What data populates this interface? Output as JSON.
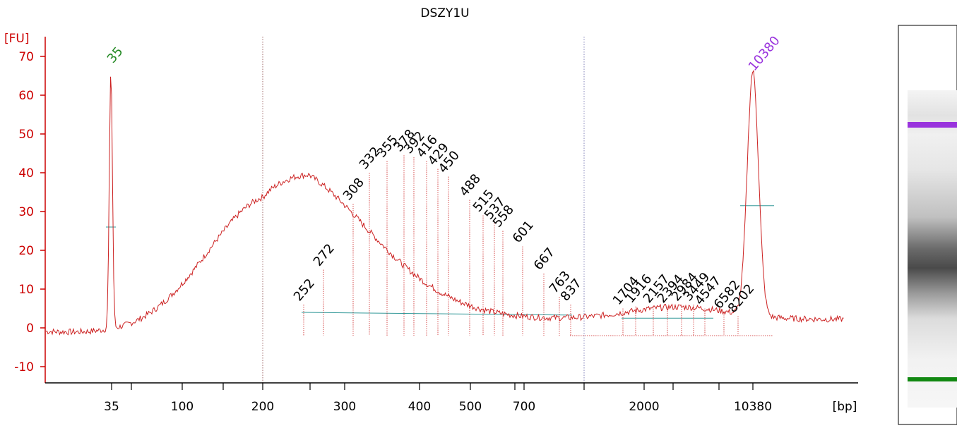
{
  "chart_data": {
    "type": "line",
    "title": "DSZY1U",
    "ylabel": "[FU]",
    "xlabel": "[bp]",
    "ylim": [
      -13,
      75
    ],
    "y_ticks": [
      -10,
      0,
      10,
      20,
      30,
      40,
      50,
      60,
      70
    ],
    "x_tick_labels": [
      "35",
      "100",
      "200",
      "300",
      "400",
      "500",
      "700",
      "2000",
      "10380"
    ],
    "colors": {
      "trace": "#cc2222",
      "axis": "#cc0000",
      "lower_marker": "#228822",
      "upper_marker": "#9933dd",
      "peak_label": "#000000",
      "baseline": "#339999"
    },
    "markers": [
      {
        "label": "35",
        "x": "35",
        "fu": 67,
        "color_key": "lower_marker"
      },
      {
        "label": "10380",
        "x": "10380",
        "fu": 65,
        "color_key": "upper_marker"
      }
    ],
    "peaks": [
      {
        "label": "252",
        "fu": 6
      },
      {
        "label": "272",
        "fu": 15
      },
      {
        "label": "308",
        "fu": 32
      },
      {
        "label": "332",
        "fu": 40
      },
      {
        "label": "355",
        "fu": 43
      },
      {
        "label": "378",
        "fu": 44.5
      },
      {
        "label": "392",
        "fu": 44
      },
      {
        "label": "416",
        "fu": 43
      },
      {
        "label": "429",
        "fu": 41
      },
      {
        "label": "450",
        "fu": 39
      },
      {
        "label": "488",
        "fu": 33
      },
      {
        "label": "515",
        "fu": 29
      },
      {
        "label": "537",
        "fu": 27
      },
      {
        "label": "558",
        "fu": 25
      },
      {
        "label": "601",
        "fu": 21
      },
      {
        "label": "667",
        "fu": 14
      },
      {
        "label": "763",
        "fu": 8
      },
      {
        "label": "837",
        "fu": 6
      },
      {
        "label": "1704",
        "fu": 5
      },
      {
        "label": "1916",
        "fu": 5.5
      },
      {
        "label": "2157",
        "fu": 5.5
      },
      {
        "label": "2394",
        "fu": 5.5
      },
      {
        "label": "2984",
        "fu": 6
      },
      {
        "label": "3449",
        "fu": 6
      },
      {
        "label": "4547",
        "fu": 5
      },
      {
        "label": "6582",
        "fu": 4
      },
      {
        "label": "8202",
        "fu": 3
      }
    ],
    "gel": {
      "upper_marker_color": "#9933dd",
      "lower_marker_color": "#118811"
    }
  }
}
